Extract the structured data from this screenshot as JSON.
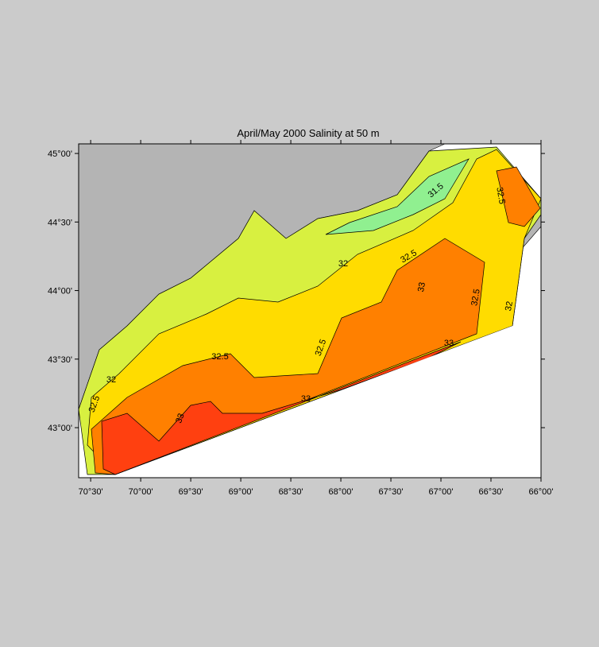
{
  "map": {
    "title": "April/May 2000  Salinity at 50 m",
    "xlim": [
      -70.62,
      -66.0
    ],
    "ylim": [
      42.635,
      45.07
    ],
    "xticks": [
      {
        "value": -70.5,
        "label": "70°30'"
      },
      {
        "value": -70.0,
        "label": "70°00'"
      },
      {
        "value": -69.5,
        "label": "69°30'"
      },
      {
        "value": -69.0,
        "label": "69°00'"
      },
      {
        "value": -68.5,
        "label": "68°30'"
      },
      {
        "value": -68.0,
        "label": "68°00'"
      },
      {
        "value": -67.5,
        "label": "67°30'"
      },
      {
        "value": -67.0,
        "label": "67°00'"
      },
      {
        "value": -66.5,
        "label": "66°30'"
      },
      {
        "value": -66.0,
        "label": "66°00'"
      }
    ],
    "yticks": [
      {
        "value": 45.0,
        "label": "45°00'"
      },
      {
        "value": 44.5,
        "label": "44°30'"
      },
      {
        "value": 44.0,
        "label": "44°00'"
      },
      {
        "value": 43.5,
        "label": "43°30'"
      },
      {
        "value": 43.0,
        "label": "43°00'"
      }
    ],
    "contour_labels": [
      "32.5",
      "32",
      "32.5",
      "33",
      "33",
      "32.5",
      "33",
      "32.5",
      "32",
      "33",
      "32.5",
      "32",
      "32.5",
      "31.5"
    ]
  }
}
